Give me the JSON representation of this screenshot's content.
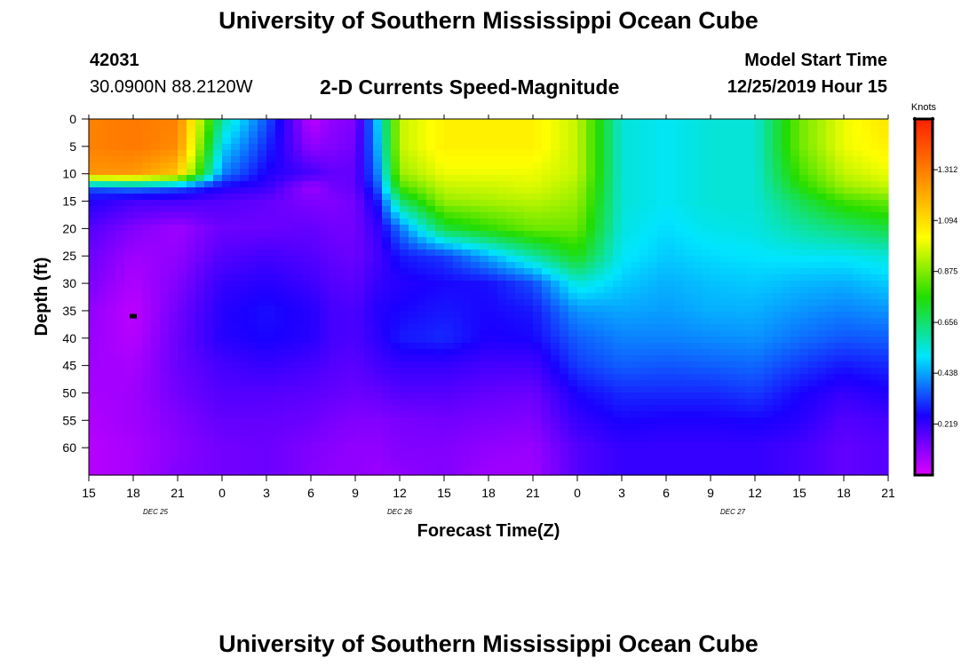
{
  "header": {
    "title": "University of Southern Mississippi Ocean Cube",
    "station_id": "42031",
    "coords": "30.0900N 88.2120W",
    "chart_title": "2-D Currents Speed-Magnitude",
    "model_label": "Model Start Time",
    "model_time": "12/25/2019 Hour 15"
  },
  "footer": {
    "title": "University of Southern Mississippi Ocean Cube"
  },
  "chart_data": {
    "type": "heatmap",
    "title": "2-D Currents Speed-Magnitude",
    "xlabel": "Forecast Time(Z)",
    "ylabel": "Depth (ft)",
    "x_ticks": [
      "15",
      "18",
      "21",
      "0",
      "3",
      "6",
      "9",
      "12",
      "15",
      "18",
      "21",
      "0",
      "3",
      "6",
      "9",
      "12",
      "15",
      "18",
      "21"
    ],
    "date_labels": [
      {
        "text": "DEC  25",
        "tick_index": 1.5
      },
      {
        "text": "DEC  26",
        "tick_index": 7
      },
      {
        "text": "DEC  27",
        "tick_index": 14.5
      }
    ],
    "y_ticks": [
      "0",
      "5",
      "10",
      "15",
      "20",
      "25",
      "30",
      "35",
      "40",
      "45",
      "50",
      "55",
      "60"
    ],
    "ylim": [
      0,
      65
    ],
    "colorbar": {
      "unit": "Knots",
      "ticks": [
        "0.219",
        "0.438",
        "0.656",
        "0.875",
        "1.094",
        "1.312"
      ],
      "range": [
        0,
        1.53
      ],
      "colors": [
        "#dd00ff",
        "#1a00ff",
        "#00e5ff",
        "#22dd00",
        "#ffff00",
        "#ff8c00",
        "#ff2000"
      ]
    },
    "marker": {
      "time_index": 1,
      "depth": 36
    },
    "speed_grid_time_index": [
      0,
      1,
      2,
      3,
      4,
      5,
      5.5,
      6,
      6.5,
      7,
      8,
      9,
      10,
      11,
      12,
      13,
      14,
      15,
      16,
      17,
      18
    ],
    "speed_grid_depth_ft": [
      0,
      5,
      10,
      12.5,
      15,
      20,
      25,
      30,
      35,
      40,
      45,
      50,
      55,
      60,
      65
    ],
    "speed_grid_knots": [
      [
        1.3,
        1.3,
        1.25,
        0.35,
        0.25,
        0.18,
        0.15,
        0.13,
        0.1,
        0.09,
        0.08,
        0.07,
        0.06,
        0.05,
        0.05
      ],
      [
        1.32,
        1.32,
        1.25,
        0.4,
        0.2,
        0.12,
        0.08,
        0.06,
        0.04,
        0.05,
        0.07,
        0.08,
        0.08,
        0.07,
        0.07
      ],
      [
        1.3,
        1.28,
        1.15,
        0.35,
        0.2,
        0.08,
        0.1,
        0.12,
        0.14,
        0.15,
        0.15,
        0.14,
        0.12,
        0.11,
        0.12
      ],
      [
        0.6,
        0.5,
        0.4,
        0.25,
        0.18,
        0.15,
        0.18,
        0.22,
        0.24,
        0.24,
        0.2,
        0.18,
        0.16,
        0.14,
        0.14
      ],
      [
        0.35,
        0.3,
        0.25,
        0.22,
        0.16,
        0.15,
        0.2,
        0.24,
        0.27,
        0.26,
        0.22,
        0.18,
        0.16,
        0.15,
        0.15
      ],
      [
        0.04,
        0.1,
        0.2,
        0.08,
        0.12,
        0.16,
        0.18,
        0.21,
        0.24,
        0.24,
        0.2,
        0.17,
        0.15,
        0.12,
        0.12
      ],
      [
        0.1,
        0.12,
        0.16,
        0.14,
        0.12,
        0.14,
        0.16,
        0.18,
        0.2,
        0.2,
        0.18,
        0.16,
        0.13,
        0.11,
        0.1
      ],
      [
        0.12,
        0.14,
        0.16,
        0.16,
        0.14,
        0.14,
        0.15,
        0.17,
        0.19,
        0.19,
        0.17,
        0.15,
        0.12,
        0.1,
        0.1
      ],
      [
        0.48,
        0.45,
        0.4,
        0.35,
        0.28,
        0.22,
        0.2,
        0.22,
        0.24,
        0.23,
        0.2,
        0.16,
        0.12,
        0.1,
        0.09
      ],
      [
        0.95,
        0.95,
        0.9,
        0.8,
        0.65,
        0.38,
        0.28,
        0.24,
        0.26,
        0.28,
        0.22,
        0.18,
        0.13,
        0.12,
        0.1
      ],
      [
        1.05,
        1.05,
        1.0,
        0.95,
        0.9,
        0.7,
        0.32,
        0.26,
        0.28,
        0.3,
        0.22,
        0.18,
        0.14,
        0.12,
        0.12
      ],
      [
        1.05,
        1.05,
        1.0,
        0.96,
        0.92,
        0.78,
        0.45,
        0.27,
        0.26,
        0.25,
        0.2,
        0.16,
        0.13,
        0.1,
        0.08
      ],
      [
        1.05,
        1.05,
        1.0,
        0.98,
        0.94,
        0.85,
        0.6,
        0.34,
        0.28,
        0.26,
        0.2,
        0.15,
        0.12,
        0.09,
        0.08
      ],
      [
        0.95,
        0.95,
        0.95,
        0.92,
        0.9,
        0.85,
        0.75,
        0.55,
        0.42,
        0.36,
        0.32,
        0.26,
        0.22,
        0.18,
        0.18
      ],
      [
        0.55,
        0.55,
        0.55,
        0.55,
        0.55,
        0.54,
        0.52,
        0.48,
        0.44,
        0.4,
        0.36,
        0.3,
        0.26,
        0.22,
        0.22
      ],
      [
        0.52,
        0.52,
        0.52,
        0.52,
        0.52,
        0.5,
        0.48,
        0.45,
        0.43,
        0.4,
        0.35,
        0.3,
        0.25,
        0.22,
        0.22
      ],
      [
        0.55,
        0.55,
        0.55,
        0.55,
        0.55,
        0.53,
        0.5,
        0.47,
        0.45,
        0.41,
        0.36,
        0.3,
        0.25,
        0.22,
        0.22
      ],
      [
        0.55,
        0.55,
        0.55,
        0.55,
        0.55,
        0.54,
        0.51,
        0.48,
        0.45,
        0.42,
        0.37,
        0.32,
        0.26,
        0.22,
        0.22
      ],
      [
        0.85,
        0.85,
        0.8,
        0.75,
        0.68,
        0.6,
        0.52,
        0.46,
        0.42,
        0.38,
        0.32,
        0.26,
        0.24,
        0.2,
        0.2
      ],
      [
        1.0,
        1.0,
        0.95,
        0.9,
        0.8,
        0.65,
        0.52,
        0.45,
        0.4,
        0.35,
        0.28,
        0.22,
        0.18,
        0.16,
        0.16
      ],
      [
        1.08,
        1.05,
        1.0,
        0.95,
        0.85,
        0.7,
        0.55,
        0.48,
        0.42,
        0.36,
        0.3,
        0.25,
        0.2,
        0.18,
        0.18
      ]
    ]
  }
}
